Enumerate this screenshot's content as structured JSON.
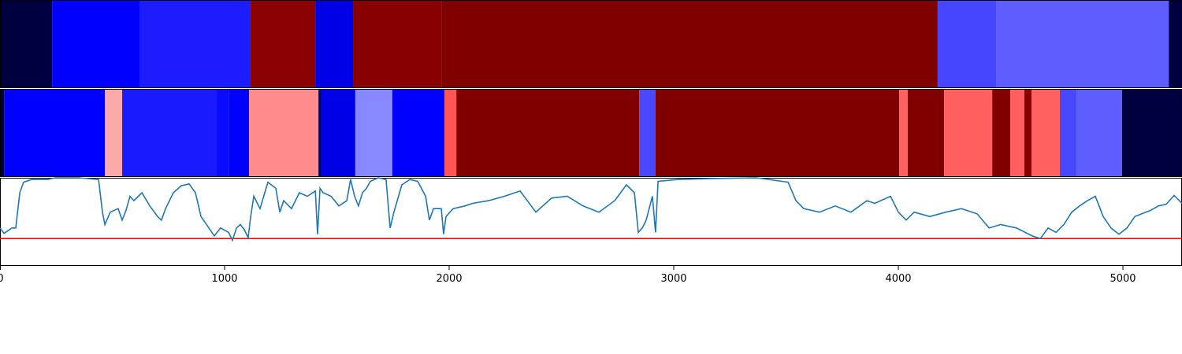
{
  "chart_data": {
    "type": "segments",
    "xlim": [
      0,
      5263
    ],
    "xticks": [
      0,
      1000,
      2000,
      3000,
      4000,
      5000
    ],
    "ylim": [
      0,
      1
    ],
    "tracks": [
      {
        "segments": [
          {
            "start": 0,
            "end": 232,
            "color": "#000040"
          },
          {
            "start": 232,
            "end": 621,
            "color": "#0000ff"
          },
          {
            "start": 621,
            "end": 1116,
            "color": "#1c1cff"
          },
          {
            "start": 1116,
            "end": 1404,
            "color": "#8b0000"
          },
          {
            "start": 1404,
            "end": 1572,
            "color": "#0000e6"
          },
          {
            "start": 1572,
            "end": 1968,
            "color": "#880000"
          },
          {
            "start": 1968,
            "end": 4175,
            "color": "#800000"
          },
          {
            "start": 4175,
            "end": 4435,
            "color": "#4646ff"
          },
          {
            "start": 4435,
            "end": 5204,
            "color": "#5e5eff"
          },
          {
            "start": 5204,
            "end": 5263,
            "color": "#000040"
          }
        ]
      },
      {
        "segments": [
          {
            "start": 0,
            "end": 18,
            "color": "#000040"
          },
          {
            "start": 18,
            "end": 467,
            "color": "#0000ff"
          },
          {
            "start": 467,
            "end": 544,
            "color": "#ffaaaa"
          },
          {
            "start": 544,
            "end": 965,
            "color": "#1a1aff"
          },
          {
            "start": 965,
            "end": 1018,
            "color": "#0a0aff"
          },
          {
            "start": 1018,
            "end": 1109,
            "color": "#0000ff"
          },
          {
            "start": 1109,
            "end": 1418,
            "color": "#ff8c8c"
          },
          {
            "start": 1418,
            "end": 1428,
            "color": "#000060"
          },
          {
            "start": 1428,
            "end": 1582,
            "color": "#0000e6"
          },
          {
            "start": 1582,
            "end": 1747,
            "color": "#8888ff"
          },
          {
            "start": 1747,
            "end": 1979,
            "color": "#0000ff"
          },
          {
            "start": 1979,
            "end": 2032,
            "color": "#ff5555"
          },
          {
            "start": 2032,
            "end": 2846,
            "color": "#800000"
          },
          {
            "start": 2846,
            "end": 2919,
            "color": "#4848ff"
          },
          {
            "start": 2919,
            "end": 4004,
            "color": "#800000"
          },
          {
            "start": 4004,
            "end": 4042,
            "color": "#ff6060"
          },
          {
            "start": 4042,
            "end": 4204,
            "color": "#800000"
          },
          {
            "start": 4204,
            "end": 4418,
            "color": "#ff5f5f"
          },
          {
            "start": 4418,
            "end": 4498,
            "color": "#800000"
          },
          {
            "start": 4498,
            "end": 4561,
            "color": "#ff5f5f"
          },
          {
            "start": 4561,
            "end": 4593,
            "color": "#880000"
          },
          {
            "start": 4593,
            "end": 4719,
            "color": "#ff6060"
          },
          {
            "start": 4719,
            "end": 4793,
            "color": "#4848ff"
          },
          {
            "start": 4793,
            "end": 4996,
            "color": "#5e5eff"
          },
          {
            "start": 4996,
            "end": 5263,
            "color": "#000040"
          }
        ]
      }
    ],
    "line": {
      "color": "#1f77b4",
      "x": [
        0,
        18,
        53,
        70,
        88,
        105,
        140,
        211,
        246,
        351,
        439,
        456,
        467,
        491,
        526,
        544,
        561,
        579,
        596,
        632,
        667,
        702,
        719,
        737,
        772,
        807,
        842,
        870,
        895,
        930,
        954,
        982,
        1018,
        1035,
        1053,
        1070,
        1088,
        1105,
        1116,
        1130,
        1158,
        1193,
        1228,
        1246,
        1263,
        1298,
        1333,
        1368,
        1404,
        1414,
        1425,
        1439,
        1474,
        1509,
        1544,
        1561,
        1579,
        1596,
        1614,
        1632,
        1649,
        1684,
        1719,
        1737,
        1754,
        1789,
        1825,
        1860,
        1895,
        1912,
        1930,
        1965,
        1975,
        1986,
        2018,
        2070,
        2105,
        2175,
        2246,
        2316,
        2386,
        2456,
        2526,
        2596,
        2667,
        2737,
        2789,
        2825,
        2842,
        2860,
        2877,
        2905,
        2919,
        2930,
        3018,
        3158,
        3368,
        3509,
        3544,
        3579,
        3649,
        3719,
        3789,
        3860,
        3895,
        3965,
        4000,
        4035,
        4070,
        4140,
        4211,
        4281,
        4351,
        4404,
        4456,
        4526,
        4596,
        4632,
        4667,
        4702,
        4737,
        4772,
        4807,
        4842,
        4877,
        4912,
        4947,
        4982,
        5018,
        5053,
        5123,
        5158,
        5193,
        5228,
        5263
      ],
      "values": [
        0.43,
        0.37,
        0.43,
        0.43,
        0.83,
        0.95,
        0.98,
        0.98,
        1.0,
        1.0,
        0.98,
        0.61,
        0.47,
        0.61,
        0.65,
        0.52,
        0.63,
        0.79,
        0.74,
        0.83,
        0.68,
        0.56,
        0.52,
        0.65,
        0.83,
        0.91,
        0.93,
        0.83,
        0.56,
        0.43,
        0.34,
        0.43,
        0.38,
        0.29,
        0.43,
        0.47,
        0.41,
        0.32,
        0.56,
        0.79,
        0.65,
        0.95,
        0.88,
        0.61,
        0.74,
        0.65,
        0.83,
        0.79,
        0.85,
        0.36,
        0.88,
        0.83,
        0.79,
        0.68,
        0.74,
        0.98,
        0.79,
        0.68,
        0.83,
        0.88,
        0.96,
        1.0,
        0.98,
        0.43,
        0.61,
        0.92,
        0.98,
        0.96,
        0.79,
        0.52,
        0.65,
        0.65,
        0.36,
        0.56,
        0.65,
        0.68,
        0.71,
        0.74,
        0.79,
        0.85,
        0.61,
        0.77,
        0.79,
        0.68,
        0.61,
        0.74,
        0.92,
        0.83,
        0.38,
        0.43,
        0.52,
        0.79,
        0.38,
        0.96,
        0.98,
        0.99,
        1.0,
        0.95,
        0.74,
        0.65,
        0.61,
        0.68,
        0.61,
        0.74,
        0.71,
        0.79,
        0.61,
        0.52,
        0.61,
        0.56,
        0.61,
        0.65,
        0.59,
        0.43,
        0.47,
        0.43,
        0.34,
        0.31,
        0.43,
        0.38,
        0.47,
        0.61,
        0.68,
        0.74,
        0.79,
        0.56,
        0.43,
        0.36,
        0.43,
        0.56,
        0.63,
        0.68,
        0.7,
        0.8,
        0.71
      ]
    },
    "threshold": {
      "value": 0.31,
      "color": "#ff0000"
    }
  }
}
